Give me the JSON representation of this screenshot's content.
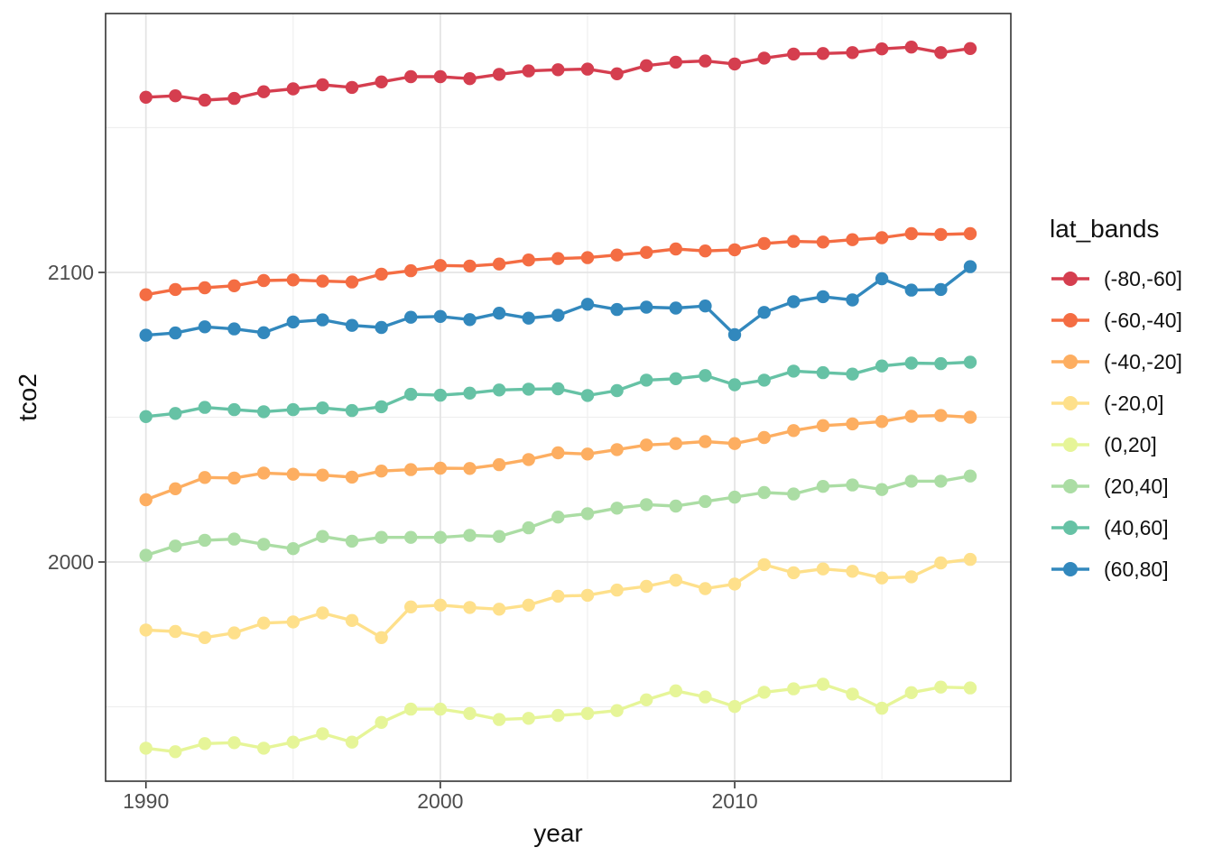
{
  "chart_data": {
    "type": "line",
    "title": "",
    "xlabel": "year",
    "ylabel": "tco2",
    "legend_title": "lat_bands",
    "legend_position": "right",
    "grid": true,
    "x_ticks": [
      1990,
      2000,
      2010
    ],
    "x_minor_ticks": [
      1995,
      2005,
      2015
    ],
    "y_ticks": [
      2000,
      2100
    ],
    "y_minor_ticks": [
      1950,
      2050,
      2150
    ],
    "x_range": [
      1988.63,
      2019.38
    ],
    "y_range": [
      1924.3,
      2189.4
    ],
    "x": [
      1990,
      1991,
      1992,
      1993,
      1994,
      1995,
      1996,
      1997,
      1998,
      1999,
      2000,
      2001,
      2002,
      2003,
      2004,
      2005,
      2006,
      2007,
      2008,
      2009,
      2010,
      2011,
      2012,
      2013,
      2014,
      2015,
      2016,
      2017,
      2018
    ],
    "series": [
      {
        "name": "(-80,-60]",
        "color": "#d53e4f",
        "values": [
          2160.5,
          2161.0,
          2159.5,
          2160.1,
          2162.4,
          2163.4,
          2164.8,
          2163.9,
          2165.8,
          2167.6,
          2167.6,
          2166.9,
          2168.4,
          2169.6,
          2170.0,
          2170.2,
          2168.6,
          2171.4,
          2172.6,
          2173.0,
          2172.0,
          2174.0,
          2175.4,
          2175.6,
          2175.9,
          2177.2,
          2177.8,
          2175.9,
          2177.3
        ]
      },
      {
        "name": "(-60,-40]",
        "color": "#f46d43",
        "values": [
          2092.3,
          2094.1,
          2094.7,
          2095.4,
          2097.2,
          2097.4,
          2097.0,
          2096.7,
          2099.4,
          2100.6,
          2102.4,
          2102.2,
          2102.9,
          2104.3,
          2104.8,
          2105.1,
          2106.0,
          2106.9,
          2108.1,
          2107.4,
          2107.8,
          2110.0,
          2110.7,
          2110.5,
          2111.3,
          2112.0,
          2113.4,
          2113.1,
          2113.4
        ]
      },
      {
        "name": "(-40,-20]",
        "color": "#fdae61",
        "values": [
          2021.5,
          2025.3,
          2029.2,
          2029.0,
          2030.7,
          2030.3,
          2030.0,
          2029.3,
          2031.4,
          2031.9,
          2032.4,
          2032.3,
          2033.6,
          2035.4,
          2037.7,
          2037.3,
          2038.8,
          2040.4,
          2040.9,
          2041.6,
          2040.9,
          2043.0,
          2045.4,
          2047.1,
          2047.7,
          2048.5,
          2050.3,
          2050.6,
          2050.0
        ]
      },
      {
        "name": "(-20,0]",
        "color": "#fee08b",
        "values": [
          1976.5,
          1976.0,
          1973.9,
          1975.5,
          1978.9,
          1979.3,
          1982.4,
          1979.8,
          1973.9,
          1984.5,
          1985.1,
          1984.3,
          1983.7,
          1985.1,
          1988.2,
          1988.5,
          1990.3,
          1991.6,
          1993.7,
          1990.8,
          1992.4,
          1999.1,
          1996.3,
          1997.6,
          1996.8,
          1994.5,
          1994.9,
          1999.7,
          2000.9
        ]
      },
      {
        "name": "(0,20]",
        "color": "#e6f598",
        "values": [
          1935.7,
          1934.5,
          1937.3,
          1937.6,
          1935.7,
          1937.8,
          1940.7,
          1937.8,
          1944.6,
          1949.2,
          1949.2,
          1947.7,
          1945.6,
          1946.0,
          1947.0,
          1947.7,
          1948.7,
          1952.4,
          1955.5,
          1953.4,
          1950.1,
          1955.0,
          1956.2,
          1957.8,
          1954.4,
          1949.5,
          1954.9,
          1956.8,
          1956.5
        ]
      },
      {
        "name": "(20,40]",
        "color": "#abdda4",
        "values": [
          2002.3,
          2005.5,
          2007.5,
          2007.9,
          2006.1,
          2004.6,
          2008.8,
          2007.2,
          2008.5,
          2008.5,
          2008.5,
          2009.2,
          2008.8,
          2011.8,
          2015.5,
          2016.7,
          2018.6,
          2019.8,
          2019.3,
          2020.9,
          2022.4,
          2024.0,
          2023.5,
          2026.1,
          2026.6,
          2025.0,
          2027.9,
          2027.9,
          2029.7
        ]
      },
      {
        "name": "(40,60]",
        "color": "#66c2a5",
        "values": [
          2050.2,
          2051.3,
          2053.4,
          2052.6,
          2051.9,
          2052.6,
          2053.2,
          2052.3,
          2053.6,
          2057.9,
          2057.6,
          2058.3,
          2059.4,
          2059.7,
          2059.8,
          2057.5,
          2059.2,
          2062.8,
          2063.3,
          2064.4,
          2061.2,
          2062.8,
          2065.9,
          2065.4,
          2064.9,
          2067.7,
          2068.7,
          2068.5,
          2069.0
        ]
      },
      {
        "name": "(60,80]",
        "color": "#3288bd",
        "values": [
          2078.3,
          2079.1,
          2081.2,
          2080.5,
          2079.2,
          2082.9,
          2083.6,
          2081.7,
          2081.0,
          2084.5,
          2084.8,
          2083.7,
          2085.9,
          2084.2,
          2085.2,
          2089.0,
          2087.2,
          2088.0,
          2087.7,
          2088.4,
          2078.5,
          2086.2,
          2089.9,
          2091.6,
          2090.5,
          2097.8,
          2093.9,
          2094.1,
          2102.0
        ]
      }
    ],
    "colors": {
      "background": "#ffffff",
      "panel_border": "#333333",
      "grid_major": "#e4e4e4",
      "grid_minor": "#efefef",
      "tick_mark": "#333333",
      "tick_text": "#4d4d4d",
      "axis_title_text": "#111111",
      "legend_text": "#111111"
    }
  }
}
